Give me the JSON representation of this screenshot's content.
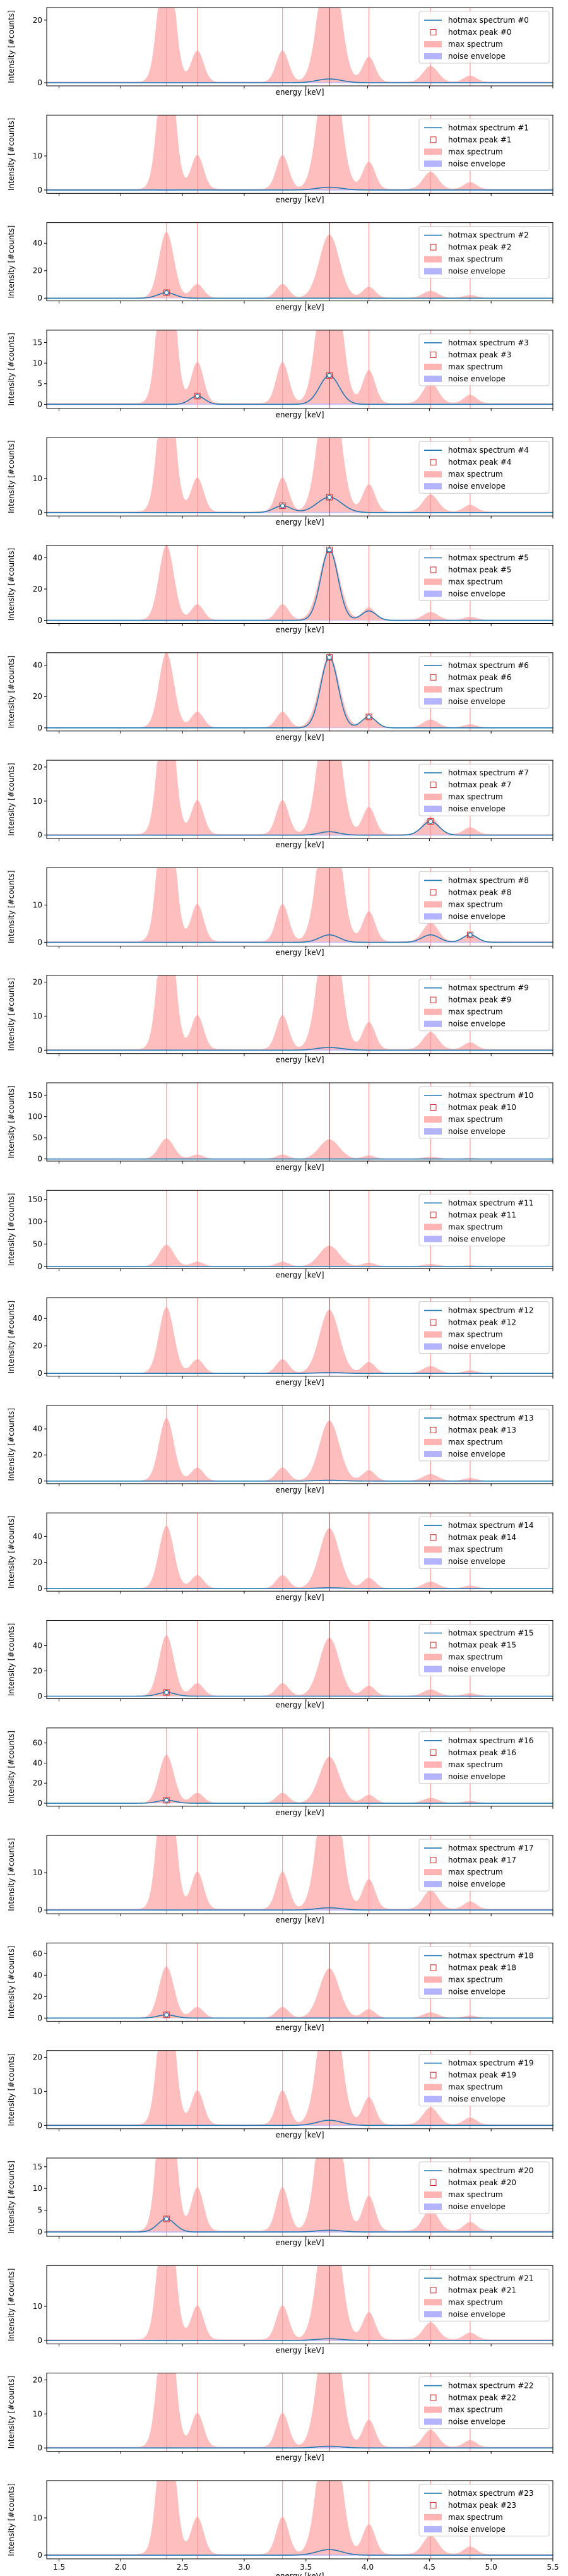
{
  "figure": {
    "xlabel": "energy [keV]",
    "ylabel": "Intensity [#counts]"
  },
  "legend_labels": {
    "spectrum": "hotmax spectrum #",
    "peak": "hotmax peak #",
    "max_spectrum": "max spectrum",
    "noise": "noise envelope"
  },
  "colors": {
    "spectrum_line": "#1f77b4",
    "peak_marker": "#d62728",
    "max_fill": "#ffb3b3",
    "noise_fill": "#b3b3ff",
    "vline_red": "#ff9999",
    "vline_dark": "#8b2b2b"
  },
  "chart_data": {
    "type": "line",
    "xlim": [
      1.4,
      5.5
    ],
    "x_ticks": [
      1.5,
      2.0,
      2.5,
      3.0,
      3.5,
      4.0,
      4.5,
      5.0,
      5.5
    ],
    "x_tick_labels": [
      "1.5",
      "2.0",
      "2.5",
      "3.0",
      "3.5",
      "4.0",
      "4.5",
      "5.0",
      "5.5"
    ],
    "vertical_lines_kev": [
      2.37,
      2.62,
      3.31,
      3.69,
      4.01,
      4.51,
      4.83
    ],
    "max_spectrum_peaks": [
      {
        "center": 2.37,
        "height": 48,
        "width": 0.06
      },
      {
        "center": 2.62,
        "height": 10,
        "width": 0.05
      },
      {
        "center": 3.31,
        "height": 10,
        "width": 0.05
      },
      {
        "center": 3.69,
        "height": 46,
        "width": 0.08
      },
      {
        "center": 4.01,
        "height": 8,
        "width": 0.05
      },
      {
        "center": 4.51,
        "height": 5,
        "width": 0.06
      },
      {
        "center": 4.83,
        "height": 2,
        "width": 0.05
      }
    ],
    "panels": [
      {
        "index": 0,
        "y_ticks": [
          0,
          20
        ],
        "ylim": [
          -1,
          24
        ],
        "peaks": [
          {
            "center": 3.69,
            "height": 1.2,
            "width": 0.1
          }
        ],
        "markers": []
      },
      {
        "index": 1,
        "y_ticks": [
          0,
          10
        ],
        "ylim": [
          -1,
          22
        ],
        "peaks": [
          {
            "center": 3.69,
            "height": 0.8,
            "width": 0.1
          }
        ],
        "markers": []
      },
      {
        "index": 2,
        "y_ticks": [
          0,
          20,
          40
        ],
        "ylim": [
          -2,
          55
        ],
        "peaks": [
          {
            "center": 2.37,
            "height": 4,
            "width": 0.07
          }
        ],
        "markers": [
          {
            "x": 2.37,
            "y": 4
          }
        ]
      },
      {
        "index": 3,
        "y_ticks": [
          0,
          5,
          10,
          15
        ],
        "ylim": [
          -1,
          18
        ],
        "peaks": [
          {
            "center": 2.62,
            "height": 2,
            "width": 0.06
          },
          {
            "center": 3.69,
            "height": 7,
            "width": 0.08
          }
        ],
        "markers": [
          {
            "x": 2.62,
            "y": 2
          },
          {
            "x": 3.69,
            "y": 7
          }
        ]
      },
      {
        "index": 4,
        "y_ticks": [
          0,
          10
        ],
        "ylim": [
          -1,
          22
        ],
        "peaks": [
          {
            "center": 3.31,
            "height": 2,
            "width": 0.07
          },
          {
            "center": 3.69,
            "height": 4.5,
            "width": 0.1
          }
        ],
        "markers": [
          {
            "x": 3.31,
            "y": 2
          },
          {
            "x": 3.69,
            "y": 4.5
          }
        ]
      },
      {
        "index": 5,
        "y_ticks": [
          0,
          20,
          40
        ],
        "ylim": [
          -2,
          48
        ],
        "peaks": [
          {
            "center": 3.69,
            "height": 45,
            "width": 0.07
          },
          {
            "center": 4.01,
            "height": 6,
            "width": 0.06
          }
        ],
        "markers": [
          {
            "x": 3.69,
            "y": 45
          }
        ]
      },
      {
        "index": 6,
        "y_ticks": [
          0,
          20,
          40
        ],
        "ylim": [
          -2,
          48
        ],
        "peaks": [
          {
            "center": 3.69,
            "height": 45,
            "width": 0.07
          },
          {
            "center": 4.01,
            "height": 7,
            "width": 0.06
          }
        ],
        "markers": [
          {
            "x": 3.69,
            "y": 45
          },
          {
            "x": 4.01,
            "y": 7
          }
        ]
      },
      {
        "index": 7,
        "y_ticks": [
          0,
          10,
          20
        ],
        "ylim": [
          -1,
          22
        ],
        "peaks": [
          {
            "center": 3.69,
            "height": 1,
            "width": 0.08
          },
          {
            "center": 4.51,
            "height": 4,
            "width": 0.07
          }
        ],
        "markers": [
          {
            "x": 4.51,
            "y": 4
          }
        ]
      },
      {
        "index": 8,
        "y_ticks": [
          0,
          10
        ],
        "ylim": [
          -1,
          20
        ],
        "peaks": [
          {
            "center": 3.69,
            "height": 2,
            "width": 0.08
          },
          {
            "center": 4.51,
            "height": 2,
            "width": 0.07
          },
          {
            "center": 4.83,
            "height": 2,
            "width": 0.06
          }
        ],
        "markers": [
          {
            "x": 4.83,
            "y": 2
          }
        ]
      },
      {
        "index": 9,
        "y_ticks": [
          0,
          10,
          20
        ],
        "ylim": [
          -1,
          22
        ],
        "peaks": [
          {
            "center": 3.69,
            "height": 0.8,
            "width": 0.1
          }
        ],
        "markers": []
      },
      {
        "index": 10,
        "y_ticks": [
          0,
          50,
          100,
          150
        ],
        "ylim": [
          -5,
          180
        ],
        "peaks": [],
        "markers": []
      },
      {
        "index": 11,
        "y_ticks": [
          0,
          50,
          100,
          150
        ],
        "ylim": [
          -5,
          170
        ],
        "peaks": [],
        "markers": []
      },
      {
        "index": 12,
        "y_ticks": [
          0,
          20,
          40
        ],
        "ylim": [
          -2,
          55
        ],
        "peaks": [
          {
            "center": 3.69,
            "height": 0.6,
            "width": 0.1
          }
        ],
        "markers": []
      },
      {
        "index": 13,
        "y_ticks": [
          0,
          20,
          40
        ],
        "ylim": [
          -2,
          58
        ],
        "peaks": [
          {
            "center": 3.69,
            "height": 0.6,
            "width": 0.1
          }
        ],
        "markers": []
      },
      {
        "index": 14,
        "y_ticks": [
          0,
          20,
          40
        ],
        "ylim": [
          -2,
          58
        ],
        "peaks": [
          {
            "center": 3.69,
            "height": 0.6,
            "width": 0.1
          }
        ],
        "markers": []
      },
      {
        "index": 15,
        "y_ticks": [
          0,
          20,
          40
        ],
        "ylim": [
          -2,
          60
        ],
        "peaks": [
          {
            "center": 2.37,
            "height": 3,
            "width": 0.07
          }
        ],
        "markers": [
          {
            "x": 2.37,
            "y": 3
          }
        ]
      },
      {
        "index": 16,
        "y_ticks": [
          0,
          20,
          40,
          60
        ],
        "ylim": [
          -3,
          75
        ],
        "peaks": [
          {
            "center": 2.37,
            "height": 3,
            "width": 0.07
          }
        ],
        "markers": [
          {
            "x": 2.37,
            "y": 3
          }
        ]
      },
      {
        "index": 17,
        "y_ticks": [
          0,
          10
        ],
        "ylim": [
          -1,
          20
        ],
        "peaks": [
          {
            "center": 3.69,
            "height": 0.6,
            "width": 0.1
          }
        ],
        "markers": []
      },
      {
        "index": 18,
        "y_ticks": [
          0,
          20,
          40,
          60
        ],
        "ylim": [
          -3,
          70
        ],
        "peaks": [
          {
            "center": 2.37,
            "height": 3,
            "width": 0.07
          }
        ],
        "markers": [
          {
            "x": 2.37,
            "y": 3
          }
        ]
      },
      {
        "index": 19,
        "y_ticks": [
          0,
          10,
          20
        ],
        "ylim": [
          -1,
          22
        ],
        "peaks": [
          {
            "center": 3.69,
            "height": 1.5,
            "width": 0.1
          }
        ],
        "markers": []
      },
      {
        "index": 20,
        "y_ticks": [
          0,
          5,
          10,
          15
        ],
        "ylim": [
          -1,
          17
        ],
        "peaks": [
          {
            "center": 2.37,
            "height": 3,
            "width": 0.07
          },
          {
            "center": 3.69,
            "height": 0.4,
            "width": 0.1
          }
        ],
        "markers": [
          {
            "x": 2.37,
            "y": 3
          }
        ]
      },
      {
        "index": 21,
        "y_ticks": [
          0,
          10
        ],
        "ylim": [
          -1,
          22
        ],
        "peaks": [
          {
            "center": 3.69,
            "height": 0.5,
            "width": 0.1
          }
        ],
        "markers": []
      },
      {
        "index": 22,
        "y_ticks": [
          0,
          10,
          20
        ],
        "ylim": [
          -1,
          22
        ],
        "peaks": [
          {
            "center": 3.69,
            "height": 0.5,
            "width": 0.1
          }
        ],
        "markers": []
      },
      {
        "index": 23,
        "y_ticks": [
          0,
          10
        ],
        "ylim": [
          -1,
          20
        ],
        "peaks": [
          {
            "center": 3.69,
            "height": 1.5,
            "width": 0.1
          }
        ],
        "markers": []
      }
    ]
  }
}
